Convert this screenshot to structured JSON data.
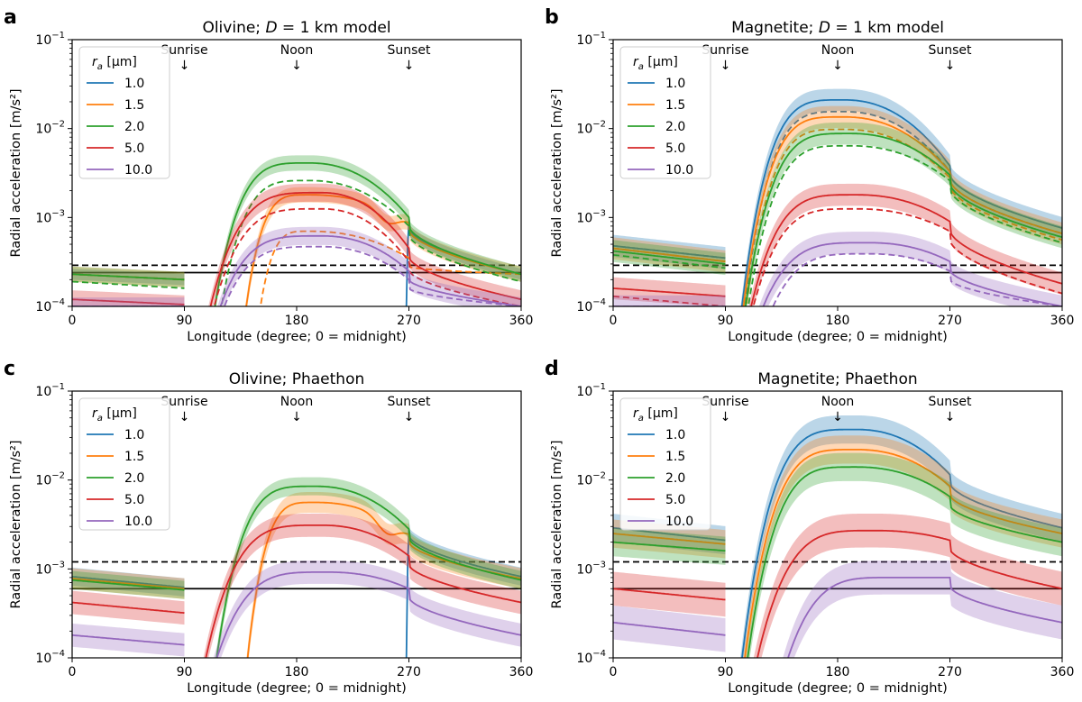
{
  "figure": {
    "xlabel": "Longitude (degree; 0 = midnight)",
    "ylabel": "Radial acceleration [m/s²]",
    "legend_title": "r_a [µm]",
    "legend_title_italic": "r",
    "legend_title_sub": "a",
    "legend_title_rest": " [µm]",
    "markers": [
      {
        "label": "Sunrise",
        "x": 90,
        "arrow": "↓"
      },
      {
        "label": "Noon",
        "x": 180,
        "arrow": "↓"
      },
      {
        "label": "Sunset",
        "x": 270,
        "arrow": "↓"
      }
    ],
    "colors": {
      "1.0": "#1f77b4",
      "1.5": "#ff7f0e",
      "2.0": "#2ca02c",
      "5.0": "#d62728",
      "10.0": "#9467bd"
    }
  },
  "chart_data": [
    {
      "panel": "a",
      "type": "line",
      "title": "Olivine; D = 1 km model",
      "title_pre": "Olivine; ",
      "title_var": "D",
      "title_post": " = 1 km model",
      "xlabel": "Longitude (degree; 0 = midnight)",
      "ylabel": "Radial acceleration [m/s²]",
      "xlim": [
        0,
        360
      ],
      "ylim": [
        0.0001,
        0.1
      ],
      "yscale": "log",
      "xticks": [
        0,
        90,
        180,
        270,
        360
      ],
      "yticks": [
        "10^-4",
        "10^-3",
        "10^-2",
        "10^-1"
      ],
      "hlines": {
        "solid": 0.00024,
        "dashed": 0.00029
      },
      "series": [
        {
          "name": "1.0",
          "night": [
            0.00023,
            0.0002
          ],
          "rise": 268,
          "peak": 0.0,
          "peakx": 190,
          "p": 1.0,
          "sunset": 0.0009,
          "dip": null,
          "dashed": null,
          "band": 0.07
        },
        {
          "name": "1.5",
          "night": [
            0.00023,
            0.0002
          ],
          "rise": 135,
          "peak": 0.0018,
          "peakx": 190,
          "p": 1.0,
          "sunset": 0.0009,
          "dip": 0.00075,
          "dashed": {
            "rise": 146,
            "peak": 0.0007,
            "sunset": 0.00035
          },
          "band": 0.1
        },
        {
          "name": "2.0",
          "night": [
            0.00023,
            0.0002
          ],
          "rise": 109,
          "peak": 0.0041,
          "peakx": 190,
          "p": 1.0,
          "sunset": 0.001,
          "dip": null,
          "dashed": {
            "rise": 114,
            "peak": 0.0026,
            "sunset": 0.0008,
            "night": [
              0.00019,
              0.00016
            ]
          },
          "band": 0.1
        },
        {
          "name": "5.0",
          "night": [
            0.00012,
            0.000105
          ],
          "rise": 103,
          "peak": 0.0019,
          "peakx": 200,
          "p": 1.0,
          "sunset": 0.00045,
          "dip": null,
          "dashed": {
            "rise": 105,
            "peak": 0.00125,
            "sunset": 0.00032,
            "night": [
              0.0001,
              0.0001
            ]
          },
          "band": 0.12
        },
        {
          "name": "10.0",
          "night": [
            0.0001,
            0.0001
          ],
          "rise": 108,
          "peak": 0.00062,
          "peakx": 200,
          "p": 1.0,
          "sunset": 0.00025,
          "dip": null,
          "dashed": {
            "rise": 110,
            "peak": 0.00047,
            "sunset": 0.0002
          },
          "band": 0.12
        }
      ]
    },
    {
      "panel": "b",
      "type": "line",
      "title": "Magnetite; D = 1 km model",
      "title_pre": "Magnetite; ",
      "title_var": "D",
      "title_post": " = 1 km model",
      "xlabel": "Longitude (degree; 0 = midnight)",
      "ylabel": "Radial acceleration [m/s²]",
      "xlim": [
        0,
        360
      ],
      "ylim": [
        0.0001,
        0.1
      ],
      "yscale": "log",
      "xticks": [
        0,
        90,
        180,
        270,
        360
      ],
      "yticks": [
        "10^-4",
        "10^-3",
        "10^-2",
        "10^-1"
      ],
      "hlines": {
        "solid": 0.00024,
        "dashed": 0.00029
      },
      "series": [
        {
          "name": "1.0",
          "night": [
            0.00048,
            0.00035
          ],
          "rise": 99,
          "peak": 0.021,
          "peakx": 185,
          "p": 1.0,
          "sunset": 0.0038,
          "dashed": {
            "rise": 101,
            "peak": 0.0155,
            "sunset": 0.0033
          },
          "band": 0.15
        },
        {
          "name": "1.5",
          "night": [
            0.00045,
            0.00032
          ],
          "rise": 100,
          "peak": 0.0135,
          "peakx": 185,
          "p": 1.0,
          "sunset": 0.0033,
          "dashed": {
            "rise": 102,
            "peak": 0.0098,
            "sunset": 0.0028
          },
          "band": 0.15
        },
        {
          "name": "2.0",
          "night": [
            0.00042,
            0.0003
          ],
          "rise": 101,
          "peak": 0.0088,
          "peakx": 190,
          "p": 1.0,
          "sunset": 0.003,
          "dashed": {
            "rise": 103,
            "peak": 0.0064,
            "sunset": 0.0026,
            "night": [
              0.00038,
              0.00027
            ]
          },
          "band": 0.15
        },
        {
          "name": "5.0",
          "night": [
            0.00016,
            0.00013
          ],
          "rise": 103,
          "peak": 0.0018,
          "peakx": 195,
          "p": 1.0,
          "sunset": 0.0009,
          "dashed": {
            "rise": 104,
            "peak": 0.00125,
            "sunset": 0.0007,
            "night": [
              0.00013,
              0.0001
            ]
          },
          "band": 0.15
        },
        {
          "name": "10.0",
          "night": [
            0.0001,
            0.0001
          ],
          "rise": 108,
          "peak": 0.00052,
          "peakx": 205,
          "p": 1.0,
          "sunset": 0.00032,
          "dashed": {
            "rise": 115,
            "peak": 0.00039,
            "sunset": 0.00025
          },
          "band": 0.15
        }
      ]
    },
    {
      "panel": "c",
      "type": "line",
      "title": "Olivine; Phaethon",
      "title_pre": "Olivine; Phaethon",
      "title_var": "",
      "title_post": "",
      "xlabel": "Longitude (degree; 0 = midnight)",
      "ylabel": "Radial acceleration [m/s²]",
      "xlim": [
        0,
        360
      ],
      "ylim": [
        0.0001,
        0.1
      ],
      "yscale": "log",
      "xticks": [
        0,
        90,
        180,
        270,
        360
      ],
      "yticks": [
        "10^-4",
        "10^-3",
        "10^-2",
        "10^-1"
      ],
      "hlines": {
        "solid": 0.0006,
        "dashed": 0.0012
      },
      "series": [
        {
          "name": "1.0",
          "night": [
            0.00082,
            0.00062
          ],
          "rise": 268,
          "peak": 0.0,
          "peakx": 195,
          "p": 1.0,
          "sunset": 0.0028,
          "dashed": null,
          "band": 0.12
        },
        {
          "name": "1.5",
          "night": [
            0.00078,
            0.0006
          ],
          "rise": 137,
          "peak": 0.0056,
          "peakx": 195,
          "p": 1.0,
          "sunset": 0.0025,
          "dip": 0.0021,
          "dashed": null,
          "band": 0.14
        },
        {
          "name": "2.0",
          "night": [
            0.00075,
            0.00058
          ],
          "rise": 111,
          "peak": 0.0085,
          "peakx": 195,
          "p": 1.0,
          "sunset": 0.0028,
          "dashed": null,
          "band": 0.12
        },
        {
          "name": "5.0",
          "night": [
            0.00042,
            0.00032
          ],
          "rise": 100,
          "peak": 0.0031,
          "peakx": 200,
          "p": 1.0,
          "sunset": 0.0014,
          "dashed": null,
          "band": 0.16
        },
        {
          "name": "10.0",
          "night": [
            0.00018,
            0.00014
          ],
          "rise": 106,
          "peak": 0.00092,
          "peakx": 205,
          "p": 1.0,
          "sunset": 0.0006,
          "dashed": null,
          "band": 0.16
        }
      ]
    },
    {
      "panel": "d",
      "type": "line",
      "title": "Magnetite; Phaethon",
      "title_pre": "Magnetite; Phaethon",
      "title_var": "",
      "title_post": "",
      "xlabel": "Longitude (degree; 0 = midnight)",
      "ylabel": "Radial acceleration [m/s²]",
      "xlim": [
        0,
        360
      ],
      "ylim": [
        0.0001,
        0.1
      ],
      "yscale": "log",
      "xticks": [
        0,
        90,
        180,
        270,
        360
      ],
      "yticks": [
        "10^-4",
        "10^-3",
        "10^-2",
        "10^-1"
      ],
      "hlines": {
        "solid": 0.0006,
        "dashed": 0.0012
      },
      "series": [
        {
          "name": "1.0",
          "night": [
            0.0029,
            0.0021
          ],
          "rise": 99,
          "peak": 0.037,
          "peakx": 195,
          "p": 1.0,
          "sunset": 0.0115,
          "dashed": null,
          "band": 0.2
        },
        {
          "name": "1.5",
          "night": [
            0.0025,
            0.0019
          ],
          "rise": 101,
          "peak": 0.022,
          "peakx": 195,
          "p": 1.0,
          "sunset": 0.0085,
          "dashed": null,
          "band": 0.2
        },
        {
          "name": "2.0",
          "night": [
            0.002,
            0.0016
          ],
          "rise": 103,
          "peak": 0.014,
          "peakx": 195,
          "p": 1.0,
          "sunset": 0.0065,
          "dashed": null,
          "band": 0.2
        },
        {
          "name": "5.0",
          "night": [
            0.0006,
            0.00045
          ],
          "rise": 108,
          "peak": 0.0027,
          "peakx": 210,
          "p": 1.0,
          "sunset": 0.0021,
          "dashed": null,
          "band": 0.25
        },
        {
          "name": "10.0",
          "night": [
            0.00025,
            0.00018
          ],
          "rise": 130,
          "peak": 0.0008,
          "peakx": 225,
          "p": 1.0,
          "sunset": 0.0008,
          "dashed": null,
          "band": 0.25
        }
      ]
    }
  ]
}
